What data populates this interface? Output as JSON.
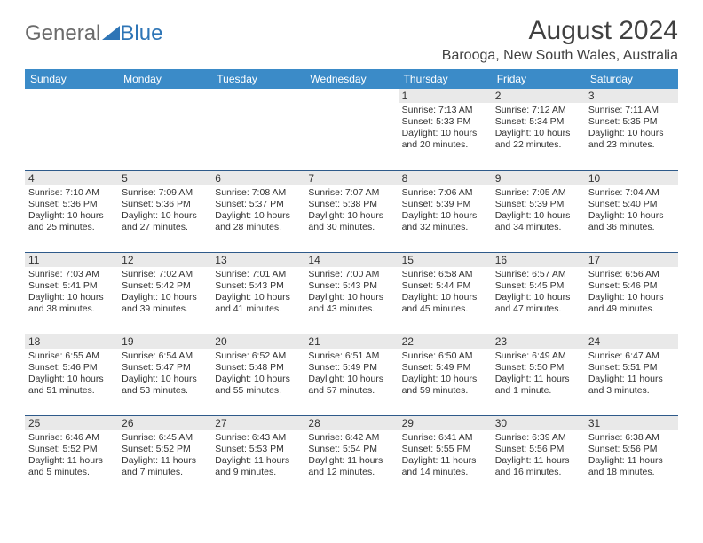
{
  "brand": {
    "part1": "General",
    "part2": "Blue"
  },
  "title": "August 2024",
  "location": "Barooga, New South Wales, Australia",
  "header_bg": "#3b8bc8",
  "header_fg": "#ffffff",
  "row_divider": "#2e5a8a",
  "daynum_bg": "#e9e9e9",
  "days_of_week": [
    "Sunday",
    "Monday",
    "Tuesday",
    "Wednesday",
    "Thursday",
    "Friday",
    "Saturday"
  ],
  "weeks": [
    [
      {
        "n": "",
        "sr": "",
        "ss": "",
        "dl": ""
      },
      {
        "n": "",
        "sr": "",
        "ss": "",
        "dl": ""
      },
      {
        "n": "",
        "sr": "",
        "ss": "",
        "dl": ""
      },
      {
        "n": "",
        "sr": "",
        "ss": "",
        "dl": ""
      },
      {
        "n": "1",
        "sr": "Sunrise: 7:13 AM",
        "ss": "Sunset: 5:33 PM",
        "dl": "Daylight: 10 hours and 20 minutes."
      },
      {
        "n": "2",
        "sr": "Sunrise: 7:12 AM",
        "ss": "Sunset: 5:34 PM",
        "dl": "Daylight: 10 hours and 22 minutes."
      },
      {
        "n": "3",
        "sr": "Sunrise: 7:11 AM",
        "ss": "Sunset: 5:35 PM",
        "dl": "Daylight: 10 hours and 23 minutes."
      }
    ],
    [
      {
        "n": "4",
        "sr": "Sunrise: 7:10 AM",
        "ss": "Sunset: 5:36 PM",
        "dl": "Daylight: 10 hours and 25 minutes."
      },
      {
        "n": "5",
        "sr": "Sunrise: 7:09 AM",
        "ss": "Sunset: 5:36 PM",
        "dl": "Daylight: 10 hours and 27 minutes."
      },
      {
        "n": "6",
        "sr": "Sunrise: 7:08 AM",
        "ss": "Sunset: 5:37 PM",
        "dl": "Daylight: 10 hours and 28 minutes."
      },
      {
        "n": "7",
        "sr": "Sunrise: 7:07 AM",
        "ss": "Sunset: 5:38 PM",
        "dl": "Daylight: 10 hours and 30 minutes."
      },
      {
        "n": "8",
        "sr": "Sunrise: 7:06 AM",
        "ss": "Sunset: 5:39 PM",
        "dl": "Daylight: 10 hours and 32 minutes."
      },
      {
        "n": "9",
        "sr": "Sunrise: 7:05 AM",
        "ss": "Sunset: 5:39 PM",
        "dl": "Daylight: 10 hours and 34 minutes."
      },
      {
        "n": "10",
        "sr": "Sunrise: 7:04 AM",
        "ss": "Sunset: 5:40 PM",
        "dl": "Daylight: 10 hours and 36 minutes."
      }
    ],
    [
      {
        "n": "11",
        "sr": "Sunrise: 7:03 AM",
        "ss": "Sunset: 5:41 PM",
        "dl": "Daylight: 10 hours and 38 minutes."
      },
      {
        "n": "12",
        "sr": "Sunrise: 7:02 AM",
        "ss": "Sunset: 5:42 PM",
        "dl": "Daylight: 10 hours and 39 minutes."
      },
      {
        "n": "13",
        "sr": "Sunrise: 7:01 AM",
        "ss": "Sunset: 5:43 PM",
        "dl": "Daylight: 10 hours and 41 minutes."
      },
      {
        "n": "14",
        "sr": "Sunrise: 7:00 AM",
        "ss": "Sunset: 5:43 PM",
        "dl": "Daylight: 10 hours and 43 minutes."
      },
      {
        "n": "15",
        "sr": "Sunrise: 6:58 AM",
        "ss": "Sunset: 5:44 PM",
        "dl": "Daylight: 10 hours and 45 minutes."
      },
      {
        "n": "16",
        "sr": "Sunrise: 6:57 AM",
        "ss": "Sunset: 5:45 PM",
        "dl": "Daylight: 10 hours and 47 minutes."
      },
      {
        "n": "17",
        "sr": "Sunrise: 6:56 AM",
        "ss": "Sunset: 5:46 PM",
        "dl": "Daylight: 10 hours and 49 minutes."
      }
    ],
    [
      {
        "n": "18",
        "sr": "Sunrise: 6:55 AM",
        "ss": "Sunset: 5:46 PM",
        "dl": "Daylight: 10 hours and 51 minutes."
      },
      {
        "n": "19",
        "sr": "Sunrise: 6:54 AM",
        "ss": "Sunset: 5:47 PM",
        "dl": "Daylight: 10 hours and 53 minutes."
      },
      {
        "n": "20",
        "sr": "Sunrise: 6:52 AM",
        "ss": "Sunset: 5:48 PM",
        "dl": "Daylight: 10 hours and 55 minutes."
      },
      {
        "n": "21",
        "sr": "Sunrise: 6:51 AM",
        "ss": "Sunset: 5:49 PM",
        "dl": "Daylight: 10 hours and 57 minutes."
      },
      {
        "n": "22",
        "sr": "Sunrise: 6:50 AM",
        "ss": "Sunset: 5:49 PM",
        "dl": "Daylight: 10 hours and 59 minutes."
      },
      {
        "n": "23",
        "sr": "Sunrise: 6:49 AM",
        "ss": "Sunset: 5:50 PM",
        "dl": "Daylight: 11 hours and 1 minute."
      },
      {
        "n": "24",
        "sr": "Sunrise: 6:47 AM",
        "ss": "Sunset: 5:51 PM",
        "dl": "Daylight: 11 hours and 3 minutes."
      }
    ],
    [
      {
        "n": "25",
        "sr": "Sunrise: 6:46 AM",
        "ss": "Sunset: 5:52 PM",
        "dl": "Daylight: 11 hours and 5 minutes."
      },
      {
        "n": "26",
        "sr": "Sunrise: 6:45 AM",
        "ss": "Sunset: 5:52 PM",
        "dl": "Daylight: 11 hours and 7 minutes."
      },
      {
        "n": "27",
        "sr": "Sunrise: 6:43 AM",
        "ss": "Sunset: 5:53 PM",
        "dl": "Daylight: 11 hours and 9 minutes."
      },
      {
        "n": "28",
        "sr": "Sunrise: 6:42 AM",
        "ss": "Sunset: 5:54 PM",
        "dl": "Daylight: 11 hours and 12 minutes."
      },
      {
        "n": "29",
        "sr": "Sunrise: 6:41 AM",
        "ss": "Sunset: 5:55 PM",
        "dl": "Daylight: 11 hours and 14 minutes."
      },
      {
        "n": "30",
        "sr": "Sunrise: 6:39 AM",
        "ss": "Sunset: 5:56 PM",
        "dl": "Daylight: 11 hours and 16 minutes."
      },
      {
        "n": "31",
        "sr": "Sunrise: 6:38 AM",
        "ss": "Sunset: 5:56 PM",
        "dl": "Daylight: 11 hours and 18 minutes."
      }
    ]
  ]
}
